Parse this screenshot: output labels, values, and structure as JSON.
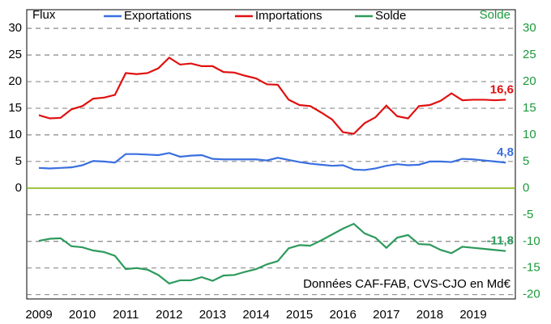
{
  "chart_data": {
    "type": "line",
    "y_label": "Flux",
    "y2_label": "Solde",
    "annotation": "Données CAF-FAB, CVS-CJO en Md€",
    "categories": [
      "2009",
      null,
      null,
      null,
      "2010",
      null,
      null,
      null,
      "2011",
      null,
      null,
      null,
      "2012",
      null,
      null,
      null,
      "2013",
      null,
      null,
      null,
      "2014",
      null,
      null,
      null,
      "2015",
      null,
      null,
      null,
      "2016",
      null,
      null,
      null,
      "2017",
      null,
      null,
      null,
      "2018",
      null,
      null,
      null,
      "2019",
      null,
      null,
      null
    ],
    "series": [
      {
        "name": "Exportations",
        "color": "#3a6fe0",
        "values": [
          3.8,
          3.7,
          3.8,
          3.9,
          4.3,
          5.1,
          5.0,
          4.8,
          6.4,
          6.4,
          6.3,
          6.2,
          6.6,
          5.9,
          6.1,
          6.2,
          5.5,
          5.4,
          5.4,
          5.4,
          5.4,
          5.2,
          5.7,
          5.3,
          4.9,
          4.6,
          4.4,
          4.2,
          4.3,
          3.5,
          3.4,
          3.7,
          4.2,
          4.5,
          4.3,
          4.4,
          5.0,
          5.0,
          4.9,
          5.5,
          5.4,
          5.2,
          5.0,
          4.8
        ],
        "value_labels": [
          null,
          null,
          null,
          null,
          null,
          null,
          null,
          null,
          null,
          null,
          null,
          null,
          null,
          null,
          null,
          null,
          null,
          null,
          null,
          null,
          null,
          null,
          null,
          null,
          null,
          null,
          null,
          null,
          null,
          null,
          null,
          null,
          null,
          null,
          null,
          null,
          null,
          null,
          null,
          null,
          null,
          null,
          null,
          "4,8"
        ]
      },
      {
        "name": "Importations",
        "color": "#e01010",
        "values": [
          13.7,
          13.1,
          13.2,
          14.8,
          15.4,
          16.8,
          17.0,
          17.5,
          21.6,
          21.4,
          21.6,
          22.5,
          24.5,
          23.2,
          23.4,
          22.9,
          22.9,
          21.8,
          21.7,
          21.1,
          20.6,
          19.5,
          19.4,
          16.6,
          15.6,
          15.4,
          14.2,
          12.9,
          10.5,
          10.2,
          12.2,
          13.3,
          15.5,
          13.5,
          13.1,
          15.4,
          15.6,
          16.4,
          17.8,
          16.5,
          16.6,
          16.6,
          16.5,
          16.6
        ],
        "value_labels": [
          null,
          null,
          null,
          null,
          null,
          null,
          null,
          null,
          null,
          null,
          null,
          null,
          null,
          null,
          null,
          null,
          null,
          null,
          null,
          null,
          null,
          null,
          null,
          null,
          null,
          null,
          null,
          null,
          null,
          null,
          null,
          null,
          null,
          null,
          null,
          null,
          null,
          null,
          null,
          null,
          null,
          null,
          null,
          "16,6"
        ]
      },
      {
        "name": "Solde",
        "color": "#2e9a5c",
        "axis": "y2",
        "values": [
          -9.9,
          -9.5,
          -9.4,
          -10.9,
          -11.1,
          -11.7,
          -12.0,
          -12.7,
          -15.2,
          -15.0,
          -15.3,
          -16.3,
          -17.9,
          -17.3,
          -17.3,
          -16.7,
          -17.4,
          -16.4,
          -16.3,
          -15.7,
          -15.2,
          -14.3,
          -13.7,
          -11.3,
          -10.7,
          -10.8,
          -9.8,
          -8.7,
          -7.6,
          -6.7,
          -8.5,
          -9.3,
          -11.2,
          -9.3,
          -8.8,
          -10.5,
          -10.6,
          -11.6,
          -12.2,
          -11.0,
          -11.2,
          -11.4,
          -11.6,
          -11.8
        ],
        "value_labels": [
          null,
          null,
          null,
          null,
          null,
          null,
          null,
          null,
          null,
          null,
          null,
          null,
          null,
          null,
          null,
          null,
          null,
          null,
          null,
          null,
          null,
          null,
          null,
          null,
          null,
          null,
          null,
          null,
          null,
          null,
          null,
          null,
          null,
          null,
          null,
          null,
          null,
          null,
          null,
          null,
          null,
          null,
          null,
          "-11,8"
        ]
      }
    ],
    "ylim": [
      -20.8,
      33.5
    ],
    "yticks": [
      0,
      5,
      10,
      15,
      20,
      25,
      30
    ],
    "y2lim": [
      -20.8,
      33.5
    ],
    "y2ticks": [
      -20,
      -15,
      -10,
      -5,
      0,
      5,
      10,
      15,
      20,
      25,
      30
    ],
    "grid": true
  }
}
